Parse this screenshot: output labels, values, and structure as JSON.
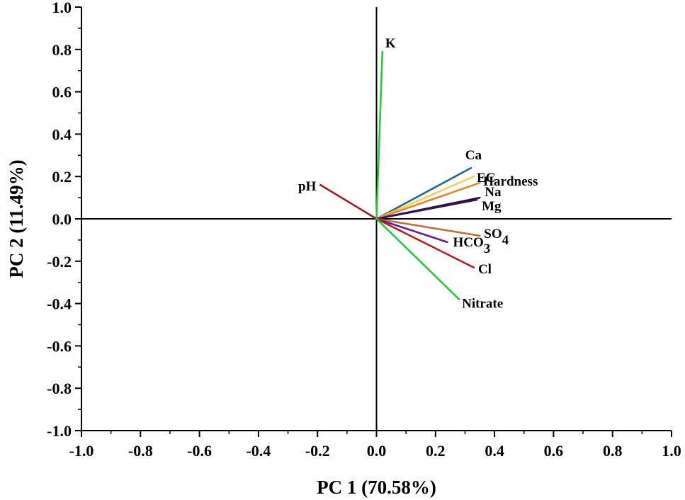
{
  "chart_data": {
    "type": "biplot",
    "xlabel": "PC 1 (70.58%)",
    "ylabel": "PC 2 (11.49%)",
    "xlim": [
      -1.0,
      1.0
    ],
    "ylim": [
      -1.0,
      1.0
    ],
    "xticks": [
      "-1.0",
      "-0.8",
      "-0.6",
      "-0.4",
      "-0.2",
      "0.0",
      "0.2",
      "0.4",
      "0.6",
      "0.8",
      "1.0"
    ],
    "yticks": [
      "1.0",
      "0.8",
      "0.6",
      "0.4",
      "0.2",
      "0.0",
      "-0.2",
      "-0.4",
      "-0.6",
      "-0.8",
      "-1.0"
    ],
    "grid": false,
    "zero_lines": true,
    "vectors": [
      {
        "label": "K",
        "label_main": "K",
        "label_sub": "",
        "x": 0.02,
        "y": 0.79,
        "color": "#22cc33"
      },
      {
        "label": "pH",
        "label_main": "pH",
        "label_sub": "",
        "x": -0.19,
        "y": 0.16,
        "color": "#9b1c1c"
      },
      {
        "label": "Ca",
        "label_main": "Ca",
        "label_sub": "",
        "x": 0.32,
        "y": 0.24,
        "color": "#1f6b8f"
      },
      {
        "label": "EC",
        "label_main": "EC",
        "label_sub": "",
        "x": 0.33,
        "y": 0.2,
        "color": "#f0d060"
      },
      {
        "label": "Hardness",
        "label_main": "Hardness",
        "label_sub": "",
        "x": 0.35,
        "y": 0.17,
        "color": "#e08a1e"
      },
      {
        "label": "Na",
        "label_main": "Na",
        "label_sub": "",
        "x": 0.35,
        "y": 0.1,
        "color": "#2a0f33"
      },
      {
        "label": "Mg",
        "label_main": "Mg",
        "label_sub": "",
        "x": 0.34,
        "y": 0.09,
        "color": "#3c1050"
      },
      {
        "label": "SO4",
        "label_main": "SO",
        "label_sub": "4",
        "x": 0.35,
        "y": -0.08,
        "color": "#c07030"
      },
      {
        "label": "HCO3",
        "label_main": "HCO",
        "label_sub": "3",
        "x": 0.24,
        "y": -0.11,
        "color": "#6a1b9a"
      },
      {
        "label": "Cl",
        "label_main": "Cl",
        "label_sub": "",
        "x": 0.33,
        "y": -0.23,
        "color": "#b71c1c"
      },
      {
        "label": "Nitrate",
        "label_main": "Nitrate",
        "label_sub": "",
        "x": 0.28,
        "y": -0.38,
        "color": "#22cc33"
      }
    ]
  }
}
